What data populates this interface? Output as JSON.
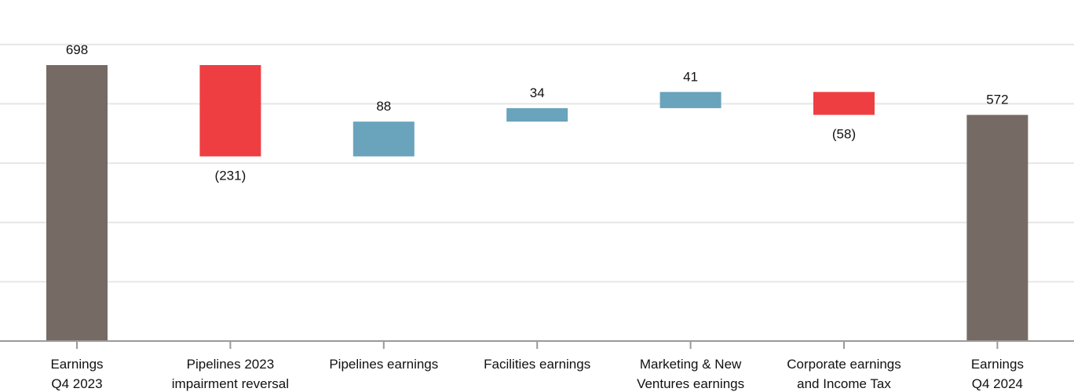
{
  "chart_data": {
    "type": "waterfall",
    "title": "",
    "xlabel": "",
    "ylabel": "",
    "ylim": [
      0,
      800
    ],
    "grid": true,
    "categories": [
      [
        "Earnings",
        "Q4 2023"
      ],
      [
        "Pipelines 2023",
        "impairment reversal"
      ],
      [
        "Pipelines earnings"
      ],
      [
        "Facilities earnings"
      ],
      [
        "Marketing & New",
        "Ventures earnings"
      ],
      [
        "Corporate earnings",
        "and Income Tax"
      ],
      [
        "Earnings",
        "Q4 2024"
      ]
    ],
    "values": [
      698,
      -231,
      88,
      34,
      41,
      -58,
      572
    ],
    "kinds": [
      "total",
      "delta",
      "delta",
      "delta",
      "delta",
      "delta",
      "total"
    ],
    "labels": [
      "698",
      "(231)",
      "88",
      "34",
      "41",
      "(58)",
      "572"
    ],
    "colors": {
      "total": "#766a64",
      "increase": "#6aa3bc",
      "decrease": "#ef3e42"
    }
  }
}
